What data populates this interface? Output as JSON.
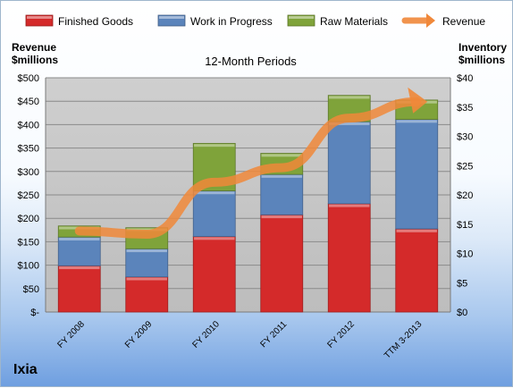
{
  "chart_data": {
    "type": "bar",
    "stacked": true,
    "subtitle": "12-Month Periods",
    "brand": "Ixia",
    "ylabel_left": [
      "Revenue",
      "$millions"
    ],
    "ylabel_right": [
      "Inventory",
      "$millions"
    ],
    "categories": [
      "FY 2008",
      "FY 2009",
      "FY 2010",
      "FY 2011",
      "FY 2012",
      "TTM 3-2013"
    ],
    "left_axis": {
      "min": 0,
      "max": 500,
      "step": 50,
      "tick_labels": [
        "$-",
        "$50",
        "$100",
        "$150",
        "$200",
        "$250",
        "$300",
        "$350",
        "$400",
        "$450",
        "$500"
      ]
    },
    "right_axis": {
      "min": 0,
      "max": 40,
      "step": 5,
      "tick_labels": [
        "$0",
        "$5",
        "$10",
        "$15",
        "$20",
        "$25",
        "$30",
        "$35",
        "$40"
      ]
    },
    "series": [
      {
        "name": "Finished Goods",
        "axis": "right",
        "color": "#d42a2a",
        "values": [
          7.9,
          6.0,
          12.9,
          16.6,
          18.5,
          14.2
        ]
      },
      {
        "name": "Work in Progress",
        "axis": "right",
        "color": "#5b84bb",
        "values": [
          4.9,
          4.8,
          7.8,
          6.9,
          14.0,
          18.7
        ]
      },
      {
        "name": "Raw Materials",
        "axis": "right",
        "color": "#7fa33a",
        "values": [
          1.9,
          3.6,
          8.1,
          3.6,
          4.5,
          3.3
        ]
      },
      {
        "name": "Revenue",
        "axis": "left",
        "type": "line",
        "color": "#f0883a",
        "values": [
          173,
          166,
          277,
          308,
          414,
          449
        ]
      }
    ],
    "legend_position": "top",
    "grid": true
  }
}
